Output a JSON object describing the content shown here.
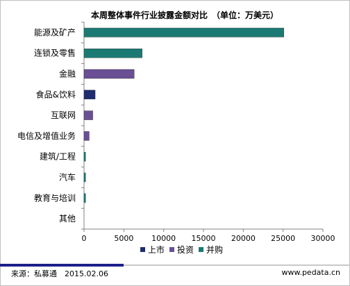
{
  "chart_data": {
    "type": "bar",
    "orientation": "horizontal",
    "stacked": true,
    "title": "本周整体事件行业披露金额对比　（单位：万美元）",
    "categories": [
      "能源及矿产",
      "连锁及零售",
      "金融",
      "食品&饮料",
      "互联网",
      "电信及增值业务",
      "建筑/工程",
      "汽车",
      "教育与培训",
      "其他"
    ],
    "series": [
      {
        "name": "上市",
        "color": "#1f2d6e",
        "values": [
          0,
          0,
          0,
          1400,
          0,
          0,
          0,
          0,
          0,
          0
        ]
      },
      {
        "name": "投资",
        "color": "#6a4f94",
        "values": [
          0,
          0,
          6300,
          0,
          1100,
          650,
          0,
          0,
          0,
          0
        ]
      },
      {
        "name": "并购",
        "color": "#1b7a73",
        "values": [
          25100,
          7300,
          0,
          0,
          0,
          0,
          200,
          200,
          200,
          0
        ]
      }
    ],
    "xlim": [
      0,
      30000
    ],
    "xticks": [
      "0",
      "5000",
      "10000",
      "15000",
      "20000",
      "25000",
      "30000"
    ],
    "grid": false,
    "legend_position": "bottom"
  },
  "footer": {
    "source": "来源：私募通　2015.02.06",
    "website": "www.pedata.cn"
  }
}
